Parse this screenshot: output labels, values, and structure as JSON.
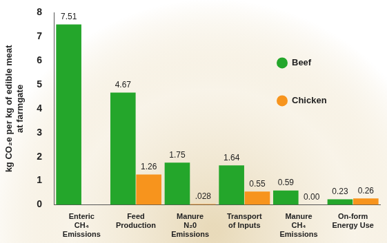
{
  "chart_data": {
    "type": "bar",
    "y_label": [
      "kg CO₂e per kg of edible meat",
      "at farmgate"
    ],
    "categories": [
      [
        "Enteric",
        "CH₄",
        "Emissions"
      ],
      [
        "Feed",
        "Production"
      ],
      [
        "Manure",
        "N₂0",
        "Emissions"
      ],
      [
        "Transport",
        "of Inputs"
      ],
      [
        "Manure",
        "CH₄",
        "Emissions"
      ],
      [
        "On-form",
        "Energy Use"
      ]
    ],
    "series": [
      {
        "name": "Beef",
        "color": "#24a62b",
        "values": [
          7.51,
          4.67,
          1.75,
          1.64,
          0.59,
          0.23
        ]
      },
      {
        "name": "Chicken",
        "color": "#f7941d",
        "values": [
          null,
          1.26,
          0.028,
          0.55,
          0,
          0.26
        ],
        "value_labels": [
          null,
          "1.26",
          ".028",
          "0.55",
          "0.00",
          "0.26"
        ]
      }
    ],
    "ylim": [
      0,
      8
    ],
    "yticks": [
      0,
      1,
      2,
      3,
      4,
      5,
      6,
      7,
      8
    ],
    "grid": false,
    "legend": "upper right",
    "data_labels": true
  }
}
